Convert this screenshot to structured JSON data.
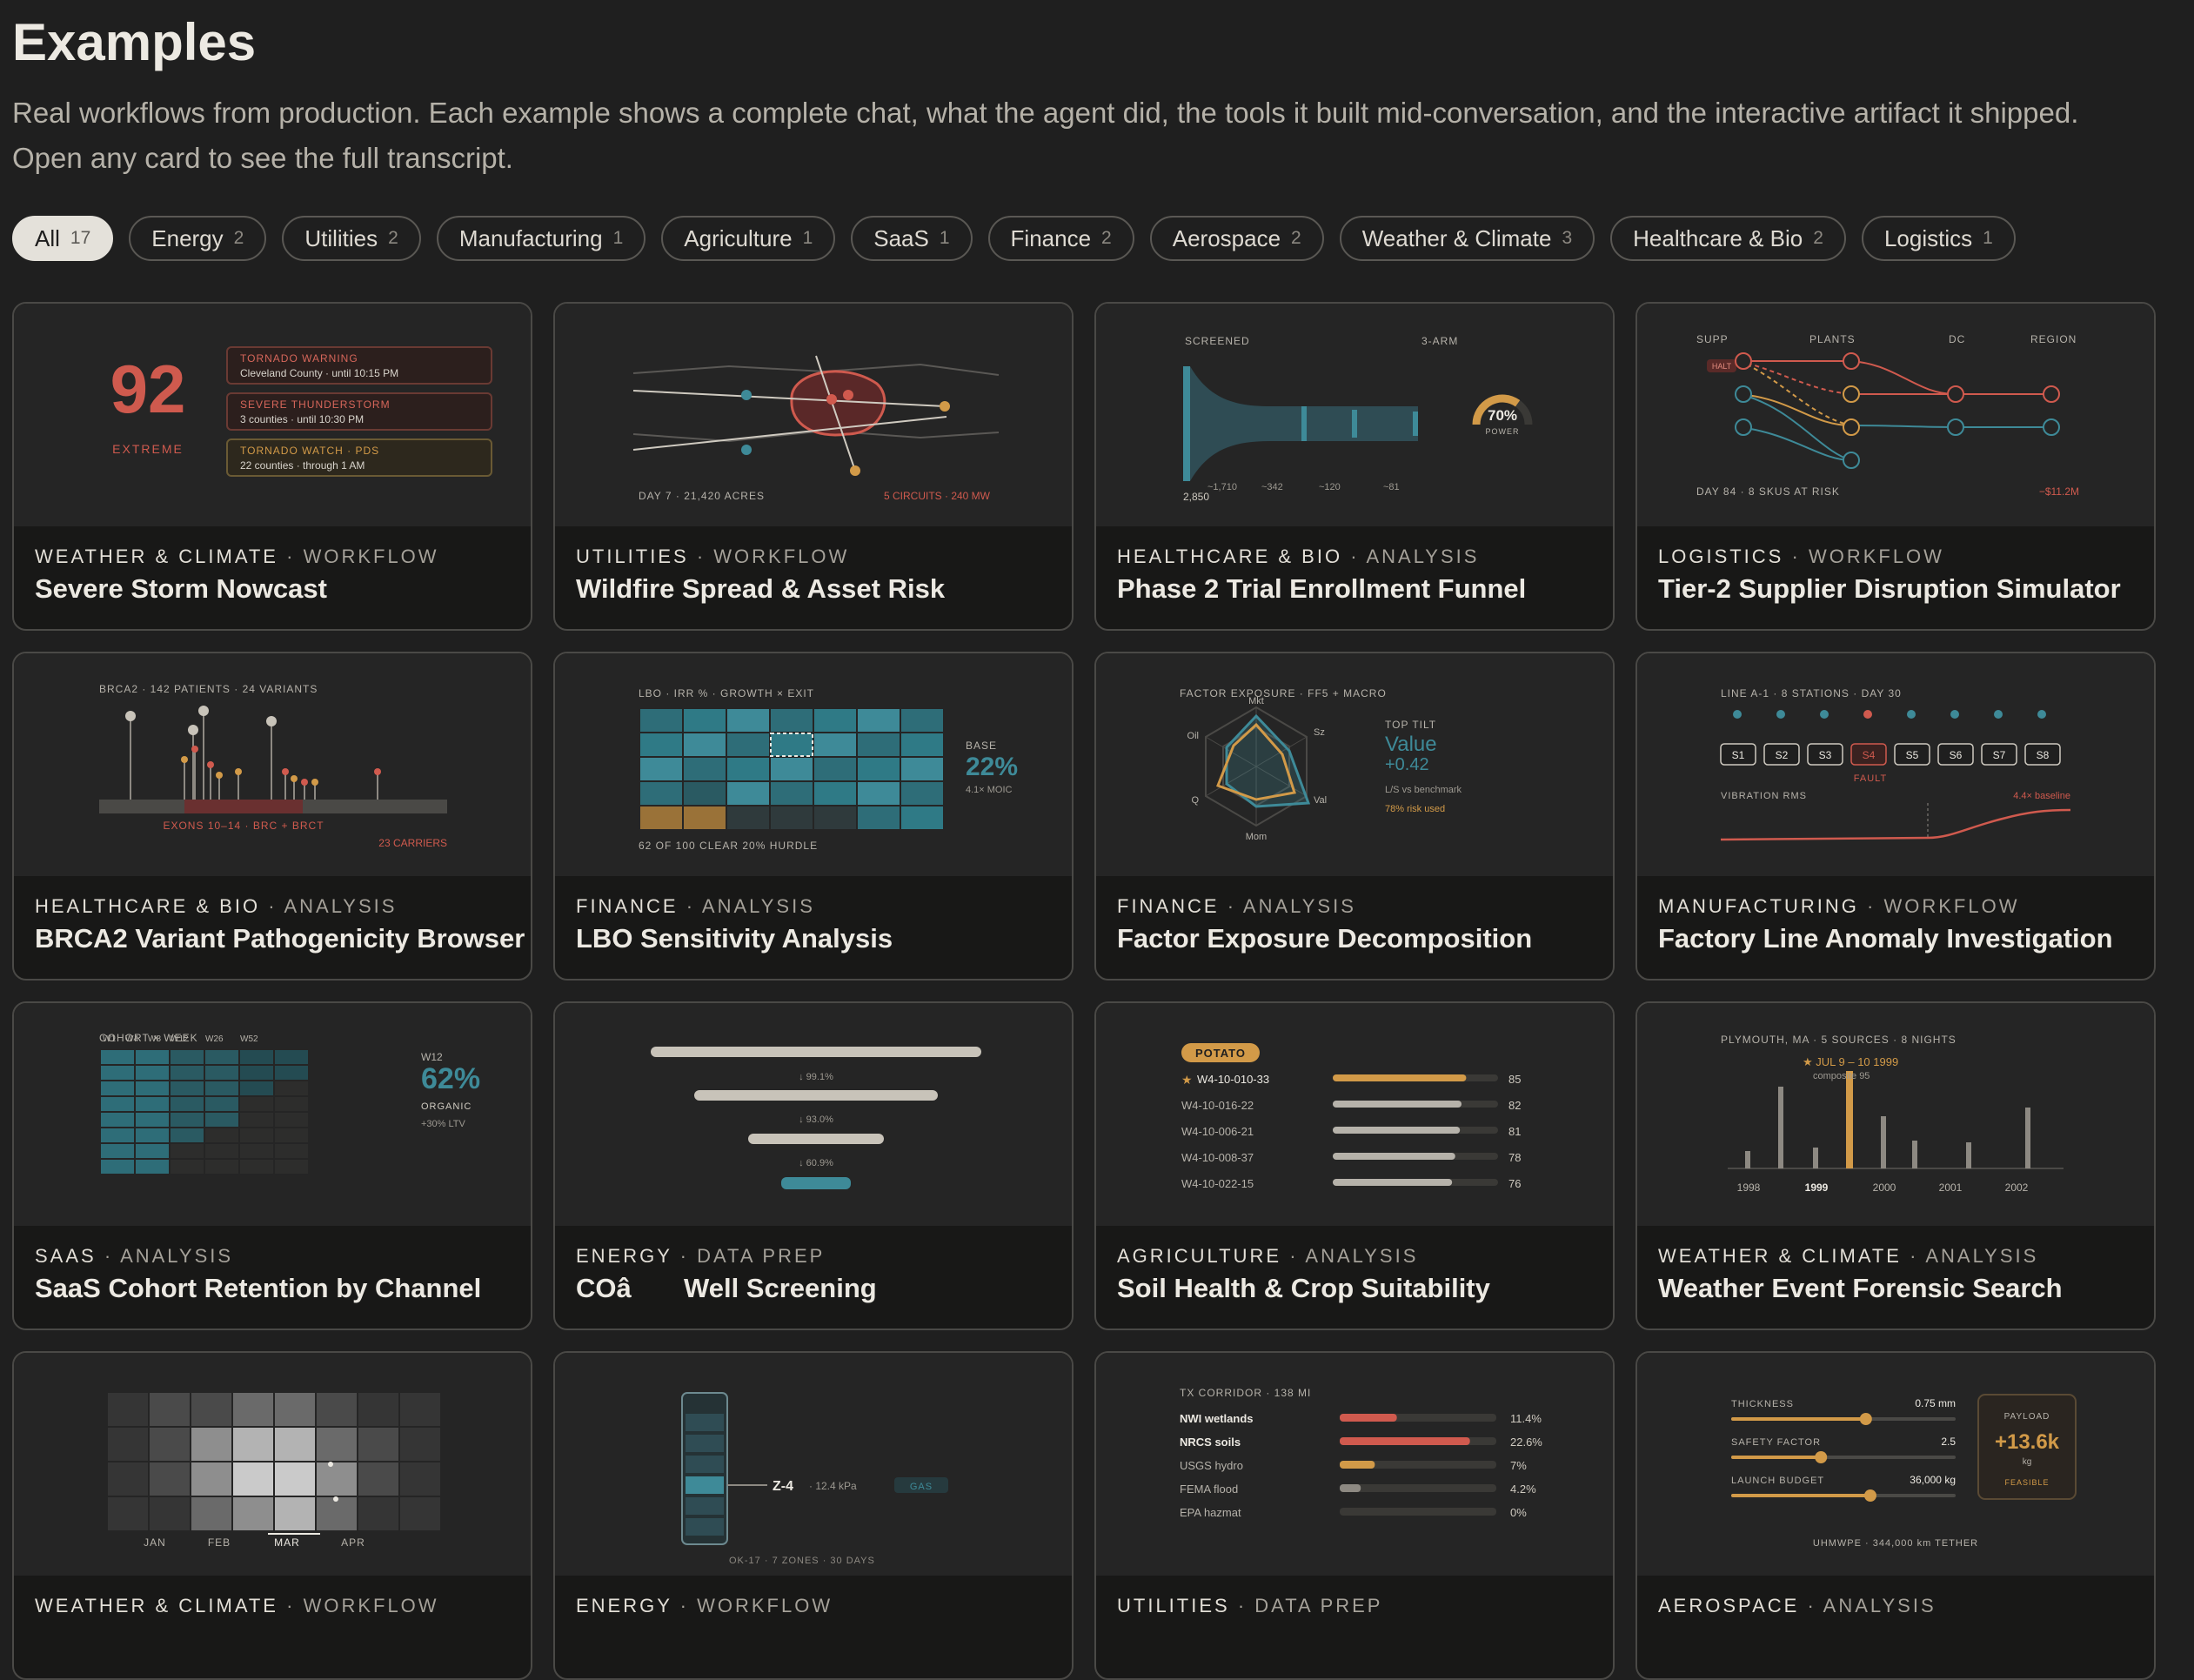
{
  "page": {
    "title": "Examples",
    "subtitle": "Real workflows from production. Each example shows a complete chat, what the agent did, the tools it built mid-conversation, and the interactive artifact it shipped. Open any card to see the full transcript."
  },
  "filters": [
    {
      "label": "All",
      "count": "17"
    },
    {
      "label": "Energy",
      "count": "2"
    },
    {
      "label": "Utilities",
      "count": "2"
    },
    {
      "label": "Manufacturing",
      "count": "1"
    },
    {
      "label": "Agriculture",
      "count": "1"
    },
    {
      "label": "SaaS",
      "count": "1"
    },
    {
      "label": "Finance",
      "count": "2"
    },
    {
      "label": "Aerospace",
      "count": "2"
    },
    {
      "label": "Weather & Climate",
      "count": "3"
    },
    {
      "label": "Healthcare & Bio",
      "count": "2"
    },
    {
      "label": "Logistics",
      "count": "1"
    }
  ],
  "sep": "·",
  "cards": [
    {
      "category": "WEATHER & CLIMATE",
      "kind": "WORKFLOW",
      "title": "Severe Storm Nowcast"
    },
    {
      "category": "UTILITIES",
      "kind": "WORKFLOW",
      "title": "Wildfire Spread & Asset Risk"
    },
    {
      "category": "HEALTHCARE & BIO",
      "kind": "ANALYSIS",
      "title": "Phase 2 Trial Enrollment Funnel"
    },
    {
      "category": "LOGISTICS",
      "kind": "WORKFLOW",
      "title": "Tier-2 Supplier Disruption Simulator"
    },
    {
      "category": "HEALTHCARE & BIO",
      "kind": "ANALYSIS",
      "title": "BRCA2 Variant Pathogenicity Browser"
    },
    {
      "category": "FINANCE",
      "kind": "ANALYSIS",
      "title": "LBO Sensitivity Analysis"
    },
    {
      "category": "FINANCE",
      "kind": "ANALYSIS",
      "title": "Factor Exposure Decomposition"
    },
    {
      "category": "MANUFACTURING",
      "kind": "WORKFLOW",
      "title": "Factory Line Anomaly Investigation"
    },
    {
      "category": "SAAS",
      "kind": "ANALYSIS",
      "title": "SaaS Cohort Retention by Channel"
    },
    {
      "category": "ENERGY",
      "kind": "DATA PREP",
      "title": "COâ       Well Screening"
    },
    {
      "category": "AGRICULTURE",
      "kind": "ANALYSIS",
      "title": "Soil Health & Crop Suitability"
    },
    {
      "category": "WEATHER & CLIMATE",
      "kind": "ANALYSIS",
      "title": "Weather Event Forensic Search"
    },
    {
      "category": "WEATHER & CLIMATE",
      "kind": "WORKFLOW",
      "title": ""
    },
    {
      "category": "ENERGY",
      "kind": "WORKFLOW",
      "title": ""
    },
    {
      "category": "UTILITIES",
      "kind": "DATA PREP",
      "title": ""
    },
    {
      "category": "AEROSPACE",
      "kind": "ANALYSIS",
      "title": ""
    }
  ],
  "previews": {
    "storm": {
      "score": "92",
      "level": "EXTREME",
      "alerts": [
        {
          "t": "TORNADO WARNING",
          "s": "Cleveland County · until 10:15 PM"
        },
        {
          "t": "SEVERE THUNDERSTORM",
          "s": "3 counties · until 10:30 PM"
        },
        {
          "t": "TORNADO WATCH · PDS",
          "s": "22 counties · through 1 AM"
        }
      ]
    },
    "wildfire": {
      "day": "DAY 7 · 21,420 ACRES",
      "circuits": "5 CIRCUITS · 240 MW"
    },
    "trial": {
      "screened": "SCREENED",
      "arm": "3-ARM",
      "n0": "2,850",
      "n1": "~1,710",
      "n2": "~342",
      "n3": "~120",
      "n4": "~81",
      "power": "70%",
      "power_label": "POWER",
      "power_value": 0.7
    },
    "supply": {
      "h1": "SUPP",
      "h2": "PLANTS",
      "h3": "DC",
      "h4": "REGION",
      "halt": "HALT",
      "footer": "DAY 84 · 8 SKUS AT RISK",
      "impact": "−$11.2M"
    },
    "brca": {
      "header": "BRCA2 · 142 PATIENTS · 24 VARIANTS",
      "exons": "EXONS 10–14 · BRC + BRCT",
      "carriers": "23 CARRIERS"
    },
    "lbo": {
      "header": "LBO · IRR % · GROWTH × EXIT",
      "base": "BASE",
      "irr": "22%",
      "moic": "4.1× MOIC",
      "footer": "62 OF 100 CLEAR 20% HURDLE"
    },
    "factor": {
      "header": "FACTOR EXPOSURE · FF5 + MACRO",
      "axes": [
        "Mkt",
        "Sz",
        "Val",
        "Mom",
        "Q",
        "Oil"
      ],
      "tilt": "TOP TILT",
      "value": "Value",
      "delta": "+0.42",
      "bench": "L/S vs benchmark",
      "risk": "78% risk used"
    },
    "factory": {
      "header": "LINE A-1 · 8 STATIONS · DAY 30",
      "stations": [
        "S1",
        "S2",
        "S3",
        "S4",
        "S5",
        "S6",
        "S7",
        "S8"
      ],
      "fault": "FAULT",
      "vib": "VIBRATION RMS",
      "baseline": "4.4× baseline"
    },
    "cohort": {
      "header": "COHORT × WEEK",
      "weeks": [
        "W1",
        "W4",
        "W8",
        "W12",
        "W26",
        "W52"
      ],
      "w": "W12",
      "pct": "62%",
      "channel": "ORGANIC",
      "ltv": "+30% LTV"
    },
    "well": {
      "s1": "↓ 99.1%",
      "s2": "↓ 93.0%",
      "s3": "↓ 60.9%"
    },
    "soil": {
      "crop": "POTATO",
      "rows": [
        {
          "id": "W4-10-010-33",
          "v": "85",
          "n": 85
        },
        {
          "id": "W4-10-016-22",
          "v": "82",
          "n": 82
        },
        {
          "id": "W4-10-006-21",
          "v": "81",
          "n": 81
        },
        {
          "id": "W4-10-008-37",
          "v": "78",
          "n": 78
        },
        {
          "id": "W4-10-022-15",
          "v": "76",
          "n": 76
        }
      ]
    },
    "forensic": {
      "header": "PLYMOUTH, MA · 5 SOURCES · 8 NIGHTS",
      "event": "★ JUL 9 – 10 1999",
      "composite": "composite 95",
      "years": [
        "1998",
        "1999",
        "2000",
        "2001",
        "2002"
      ]
    },
    "heat": {
      "months": [
        "JAN",
        "FEB",
        "MAR",
        "APR"
      ]
    },
    "zone": {
      "zone": "Z-4",
      "kpa": "· 12.4 kPa",
      "gas": "GAS",
      "footer": "OK-17 · 7 ZONES · 30 DAYS"
    },
    "corridor": {
      "header": "TX CORRIDOR · 138 MI",
      "rows": [
        {
          "l": "NWI wetlands",
          "v": "11.4%",
          "n": 11.4
        },
        {
          "l": "NRCS soils",
          "v": "22.6%",
          "n": 22.6
        },
        {
          "l": "USGS hydro",
          "v": "7%",
          "n": 7
        },
        {
          "l": "FEMA flood",
          "v": "4.2%",
          "n": 4.2
        },
        {
          "l": "EPA hazmat",
          "v": "0%",
          "n": 0
        }
      ]
    },
    "aero": {
      "sliders": [
        {
          "l": "THICKNESS",
          "v": "0.75 mm",
          "f": 0.6
        },
        {
          "l": "SAFETY FACTOR",
          "v": "2.5",
          "f": 0.4
        },
        {
          "l": "LAUNCH BUDGET",
          "v": "36,000 kg",
          "f": 0.62
        }
      ],
      "payload": "PAYLOAD",
      "amount": "+13.6k",
      "unit": "kg",
      "status": "FEASIBLE",
      "footer": "UHMWPE · 344,000 km TETHER"
    }
  },
  "colors": {
    "accent": "#e4e1da",
    "teal": "#3e8a98",
    "red": "#d05a4e",
    "gold": "#d29a48",
    "bg": "#1f1f1f"
  }
}
